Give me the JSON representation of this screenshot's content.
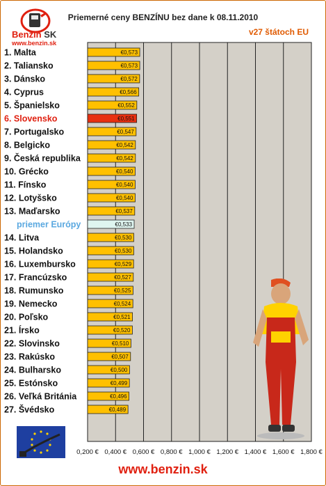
{
  "header": {
    "title": "Priemerné ceny BENZÍNU bez dane k 08.11.2010",
    "subtitle": "v27 štátoch EU"
  },
  "logo": {
    "name_a": "Benzin",
    "name_b": "SK",
    "url": "www.benzin.sk"
  },
  "footer": {
    "url": "www.benzin.sk"
  },
  "colors": {
    "bar": "#ffc000",
    "highlight": "#e83010",
    "average": "#dff5f0",
    "plot_bg": "#d4d0c8",
    "highlight_text": "#e02010",
    "average_text": "#5aa8e0"
  },
  "icons": [
    "benzin-logo-icon",
    "eu-flag-icon",
    "mechanic-mascot-icon"
  ],
  "chart_data": {
    "type": "bar",
    "orientation": "horizontal",
    "title": "Priemerné ceny BENZÍNU bez dane k 08.11.2010",
    "subtitle": "v27 štátoch EU",
    "xlim": [
      0.2,
      1.8
    ],
    "x_ticks": [
      "0,200 €",
      "0,400 €",
      "0,600 €",
      "0,800 €",
      "1,000 €",
      "1,200 €",
      "1,400 €",
      "1,600 €",
      "1,800 €"
    ],
    "grid": true,
    "highlight_index": 5,
    "average_index": 13,
    "categories": [
      "1. Malta",
      "2. Taliansko",
      "3. Dánsko",
      "4. Cyprus",
      "5. Španielsko",
      "6. Slovensko",
      "7. Portugalsko",
      "8. Belgicko",
      "9. Česká republika",
      "10. Grécko",
      "11. Fínsko",
      "12. Lotyšsko",
      "13. Maďarsko",
      "priemer Európy",
      "14. Litva",
      "15. Holandsko",
      "16. Luxembursko",
      "17. Francúzsko",
      "18. Rumunsko",
      "19. Nemecko",
      "20. Poľsko",
      "21. Írsko",
      "22. Slovinsko",
      "23. Rakúsko",
      "24. Bulharsko",
      "25. Estónsko",
      "26. Veľká Británia",
      "27. Švédsko"
    ],
    "values": [
      0.573,
      0.573,
      0.572,
      0.566,
      0.552,
      0.551,
      0.547,
      0.542,
      0.542,
      0.54,
      0.54,
      0.54,
      0.537,
      0.533,
      0.53,
      0.53,
      0.529,
      0.527,
      0.525,
      0.524,
      0.521,
      0.52,
      0.51,
      0.507,
      0.5,
      0.499,
      0.496,
      0.489
    ],
    "value_labels": [
      "€0,573",
      "€0,573",
      "€0,572",
      "€0,566",
      "€0,552",
      "€0,551",
      "€0,547",
      "€0,542",
      "€0,542",
      "€0,540",
      "€0,540",
      "€0,540",
      "€0,537",
      "€0,533",
      "€0,530",
      "€0,530",
      "€0,529",
      "€0,527",
      "€0,525",
      "€0,524",
      "€0,521",
      "€0,520",
      "€0,510",
      "€0,507",
      "€0,500",
      "€0,499",
      "€0,496",
      "€0,489"
    ]
  }
}
